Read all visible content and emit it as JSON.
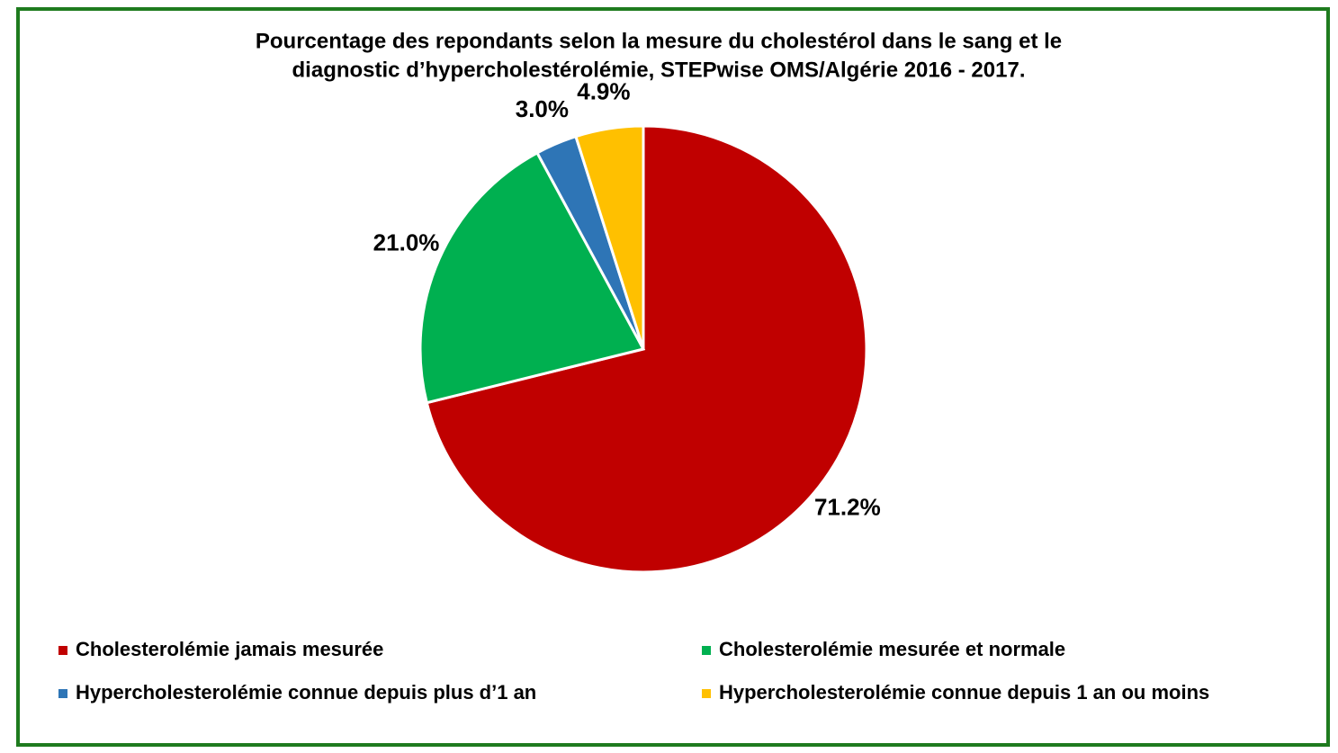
{
  "chart_data": {
    "type": "pie",
    "title": [
      "Pourcentage des repondants selon la mesure du cholestérol dans le sang et le",
      "diagnostic d’hypercholestérolémie,   STEPwise OMS/Algérie 2016 - 2017."
    ],
    "categories": [
      "Cholesterolémie  jamais mesurée",
      "Cholesterolémie mesurée et normale",
      "Hypercholesterolémie connue depuis plus d’1 an",
      "Hypercholesterolémie  connue depuis 1 an ou moins"
    ],
    "values": [
      71.2,
      21.0,
      3.0,
      4.9
    ],
    "value_labels": [
      "71.2%",
      "21.0%",
      "3.0%",
      "4.9%"
    ],
    "colors": [
      "#c00000",
      "#00b050",
      "#2e75b6",
      "#ffc000"
    ],
    "legend": "bottom"
  }
}
